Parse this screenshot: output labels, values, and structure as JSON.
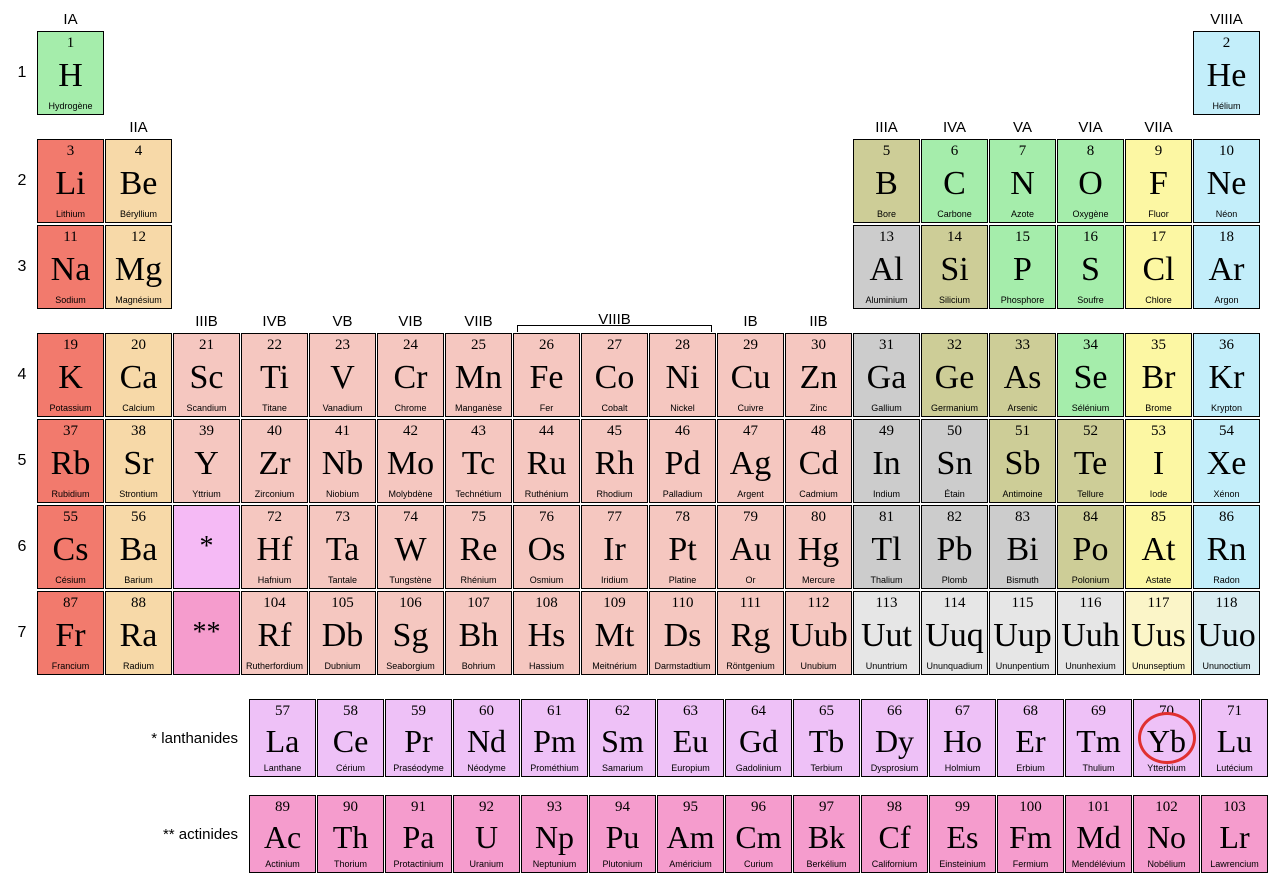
{
  "colors": {
    "nonmetal_green": "#a5edab",
    "noble_gas": "#c3eefa",
    "alkali": "#f27a6d",
    "alkaline_earth": "#f7d9a8",
    "transition": "#f5c7c0",
    "post_transition": "#cccccc",
    "metalloid": "#cdcd97",
    "halogen": "#fcf7a3",
    "lanthanide_marker": "#f5baf5",
    "lanthanide": "#eec1f7",
    "actinide_marker": "#f59ccd",
    "actinide": "#f59ccd",
    "unknown_yellow": "#fbf5c8",
    "unknown_gray": "#e6e6e6",
    "unknown_blue": "#d9edf2",
    "pale_metalloid": "#e0e0c4"
  },
  "highlight": {
    "element": 70,
    "color": "#e03030"
  },
  "group_labels": {
    "1": "IA",
    "2": "IIA",
    "3": "IIIB",
    "4": "IVB",
    "5": "VB",
    "6": "VIB",
    "7": "VIIB",
    "8": "VIIIB",
    "11": "IB",
    "12": "IIB",
    "13": "IIIA",
    "14": "IVA",
    "15": "VA",
    "16": "VIA",
    "17": "VIIA",
    "18": "VIIIA"
  },
  "group_label_row": {
    "1": 1,
    "2": 2,
    "3": 4,
    "4": 4,
    "5": 4,
    "6": 4,
    "7": 4,
    "8": 4,
    "11": 4,
    "12": 4,
    "13": 2,
    "14": 2,
    "15": 2,
    "16": 2,
    "17": 2,
    "18": 1
  },
  "periods": [
    1,
    2,
    3,
    4,
    5,
    6,
    7
  ],
  "series": [
    {
      "label": "* lanthanides",
      "from": 57,
      "to": 71,
      "cat": "lanthanide"
    },
    {
      "label": "** actinides",
      "from": 89,
      "to": 103,
      "cat": "actinide"
    }
  ],
  "markers": [
    {
      "period": 6,
      "group": 3,
      "text": "*",
      "cat": "lanthanide_marker"
    },
    {
      "period": 7,
      "group": 3,
      "text": "**",
      "cat": "actinide_marker"
    }
  ],
  "elements": [
    {
      "n": 1,
      "s": "H",
      "name": "Hydrogène",
      "p": 1,
      "g": 1,
      "cat": "nonmetal_green"
    },
    {
      "n": 2,
      "s": "He",
      "name": "Hélium",
      "p": 1,
      "g": 18,
      "cat": "noble_gas"
    },
    {
      "n": 3,
      "s": "Li",
      "name": "Lithium",
      "p": 2,
      "g": 1,
      "cat": "alkali"
    },
    {
      "n": 4,
      "s": "Be",
      "name": "Béryllium",
      "p": 2,
      "g": 2,
      "cat": "alkaline_earth"
    },
    {
      "n": 5,
      "s": "B",
      "name": "Bore",
      "p": 2,
      "g": 13,
      "cat": "metalloid"
    },
    {
      "n": 6,
      "s": "C",
      "name": "Carbone",
      "p": 2,
      "g": 14,
      "cat": "nonmetal_green"
    },
    {
      "n": 7,
      "s": "N",
      "name": "Azote",
      "p": 2,
      "g": 15,
      "cat": "nonmetal_green"
    },
    {
      "n": 8,
      "s": "O",
      "name": "Oxygène",
      "p": 2,
      "g": 16,
      "cat": "nonmetal_green"
    },
    {
      "n": 9,
      "s": "F",
      "name": "Fluor",
      "p": 2,
      "g": 17,
      "cat": "halogen"
    },
    {
      "n": 10,
      "s": "Ne",
      "name": "Néon",
      "p": 2,
      "g": 18,
      "cat": "noble_gas"
    },
    {
      "n": 11,
      "s": "Na",
      "name": "Sodium",
      "p": 3,
      "g": 1,
      "cat": "alkali"
    },
    {
      "n": 12,
      "s": "Mg",
      "name": "Magnésium",
      "p": 3,
      "g": 2,
      "cat": "alkaline_earth"
    },
    {
      "n": 13,
      "s": "Al",
      "name": "Aluminium",
      "p": 3,
      "g": 13,
      "cat": "post_transition"
    },
    {
      "n": 14,
      "s": "Si",
      "name": "Silicium",
      "p": 3,
      "g": 14,
      "cat": "metalloid"
    },
    {
      "n": 15,
      "s": "P",
      "name": "Phosphore",
      "p": 3,
      "g": 15,
      "cat": "nonmetal_green"
    },
    {
      "n": 16,
      "s": "S",
      "name": "Soufre",
      "p": 3,
      "g": 16,
      "cat": "nonmetal_green"
    },
    {
      "n": 17,
      "s": "Cl",
      "name": "Chlore",
      "p": 3,
      "g": 17,
      "cat": "halogen"
    },
    {
      "n": 18,
      "s": "Ar",
      "name": "Argon",
      "p": 3,
      "g": 18,
      "cat": "noble_gas"
    },
    {
      "n": 19,
      "s": "K",
      "name": "Potassium",
      "p": 4,
      "g": 1,
      "cat": "alkali"
    },
    {
      "n": 20,
      "s": "Ca",
      "name": "Calcium",
      "p": 4,
      "g": 2,
      "cat": "alkaline_earth"
    },
    {
      "n": 21,
      "s": "Sc",
      "name": "Scandium",
      "p": 4,
      "g": 3,
      "cat": "transition"
    },
    {
      "n": 22,
      "s": "Ti",
      "name": "Titane",
      "p": 4,
      "g": 4,
      "cat": "transition"
    },
    {
      "n": 23,
      "s": "V",
      "name": "Vanadium",
      "p": 4,
      "g": 5,
      "cat": "transition"
    },
    {
      "n": 24,
      "s": "Cr",
      "name": "Chrome",
      "p": 4,
      "g": 6,
      "cat": "transition"
    },
    {
      "n": 25,
      "s": "Mn",
      "name": "Manganèse",
      "p": 4,
      "g": 7,
      "cat": "transition"
    },
    {
      "n": 26,
      "s": "Fe",
      "name": "Fer",
      "p": 4,
      "g": 8,
      "cat": "transition"
    },
    {
      "n": 27,
      "s": "Co",
      "name": "Cobalt",
      "p": 4,
      "g": 9,
      "cat": "transition"
    },
    {
      "n": 28,
      "s": "Ni",
      "name": "Nickel",
      "p": 4,
      "g": 10,
      "cat": "transition"
    },
    {
      "n": 29,
      "s": "Cu",
      "name": "Cuivre",
      "p": 4,
      "g": 11,
      "cat": "transition"
    },
    {
      "n": 30,
      "s": "Zn",
      "name": "Zinc",
      "p": 4,
      "g": 12,
      "cat": "transition"
    },
    {
      "n": 31,
      "s": "Ga",
      "name": "Gallium",
      "p": 4,
      "g": 13,
      "cat": "post_transition"
    },
    {
      "n": 32,
      "s": "Ge",
      "name": "Germanium",
      "p": 4,
      "g": 14,
      "cat": "metalloid"
    },
    {
      "n": 33,
      "s": "As",
      "name": "Arsenic",
      "p": 4,
      "g": 15,
      "cat": "metalloid"
    },
    {
      "n": 34,
      "s": "Se",
      "name": "Sélénium",
      "p": 4,
      "g": 16,
      "cat": "nonmetal_green"
    },
    {
      "n": 35,
      "s": "Br",
      "name": "Brome",
      "p": 4,
      "g": 17,
      "cat": "halogen"
    },
    {
      "n": 36,
      "s": "Kr",
      "name": "Krypton",
      "p": 4,
      "g": 18,
      "cat": "noble_gas"
    },
    {
      "n": 37,
      "s": "Rb",
      "name": "Rubidium",
      "p": 5,
      "g": 1,
      "cat": "alkali"
    },
    {
      "n": 38,
      "s": "Sr",
      "name": "Strontium",
      "p": 5,
      "g": 2,
      "cat": "alkaline_earth"
    },
    {
      "n": 39,
      "s": "Y",
      "name": "Yttrium",
      "p": 5,
      "g": 3,
      "cat": "transition"
    },
    {
      "n": 40,
      "s": "Zr",
      "name": "Zirconium",
      "p": 5,
      "g": 4,
      "cat": "transition"
    },
    {
      "n": 41,
      "s": "Nb",
      "name": "Niobium",
      "p": 5,
      "g": 5,
      "cat": "transition"
    },
    {
      "n": 42,
      "s": "Mo",
      "name": "Molybdène",
      "p": 5,
      "g": 6,
      "cat": "transition"
    },
    {
      "n": 43,
      "s": "Tc",
      "name": "Technétium",
      "p": 5,
      "g": 7,
      "cat": "transition"
    },
    {
      "n": 44,
      "s": "Ru",
      "name": "Ruthénium",
      "p": 5,
      "g": 8,
      "cat": "transition"
    },
    {
      "n": 45,
      "s": "Rh",
      "name": "Rhodium",
      "p": 5,
      "g": 9,
      "cat": "transition"
    },
    {
      "n": 46,
      "s": "Pd",
      "name": "Palladium",
      "p": 5,
      "g": 10,
      "cat": "transition"
    },
    {
      "n": 47,
      "s": "Ag",
      "name": "Argent",
      "p": 5,
      "g": 11,
      "cat": "transition"
    },
    {
      "n": 48,
      "s": "Cd",
      "name": "Cadmium",
      "p": 5,
      "g": 12,
      "cat": "transition"
    },
    {
      "n": 49,
      "s": "In",
      "name": "Indium",
      "p": 5,
      "g": 13,
      "cat": "post_transition"
    },
    {
      "n": 50,
      "s": "Sn",
      "name": "Étain",
      "p": 5,
      "g": 14,
      "cat": "post_transition"
    },
    {
      "n": 51,
      "s": "Sb",
      "name": "Antimoine",
      "p": 5,
      "g": 15,
      "cat": "metalloid"
    },
    {
      "n": 52,
      "s": "Te",
      "name": "Tellure",
      "p": 5,
      "g": 16,
      "cat": "metalloid"
    },
    {
      "n": 53,
      "s": "I",
      "name": "Iode",
      "p": 5,
      "g": 17,
      "cat": "halogen"
    },
    {
      "n": 54,
      "s": "Xe",
      "name": "Xénon",
      "p": 5,
      "g": 18,
      "cat": "noble_gas"
    },
    {
      "n": 55,
      "s": "Cs",
      "name": "Césium",
      "p": 6,
      "g": 1,
      "cat": "alkali"
    },
    {
      "n": 56,
      "s": "Ba",
      "name": "Barium",
      "p": 6,
      "g": 2,
      "cat": "alkaline_earth"
    },
    {
      "n": 72,
      "s": "Hf",
      "name": "Hafnium",
      "p": 6,
      "g": 4,
      "cat": "transition"
    },
    {
      "n": 73,
      "s": "Ta",
      "name": "Tantale",
      "p": 6,
      "g": 5,
      "cat": "transition"
    },
    {
      "n": 74,
      "s": "W",
      "name": "Tungstène",
      "p": 6,
      "g": 6,
      "cat": "transition"
    },
    {
      "n": 75,
      "s": "Re",
      "name": "Rhénium",
      "p": 6,
      "g": 7,
      "cat": "transition"
    },
    {
      "n": 76,
      "s": "Os",
      "name": "Osmium",
      "p": 6,
      "g": 8,
      "cat": "transition"
    },
    {
      "n": 77,
      "s": "Ir",
      "name": "Iridium",
      "p": 6,
      "g": 9,
      "cat": "transition"
    },
    {
      "n": 78,
      "s": "Pt",
      "name": "Platine",
      "p": 6,
      "g": 10,
      "cat": "transition"
    },
    {
      "n": 79,
      "s": "Au",
      "name": "Or",
      "p": 6,
      "g": 11,
      "cat": "transition"
    },
    {
      "n": 80,
      "s": "Hg",
      "name": "Mercure",
      "p": 6,
      "g": 12,
      "cat": "transition"
    },
    {
      "n": 81,
      "s": "Tl",
      "name": "Thalium",
      "p": 6,
      "g": 13,
      "cat": "post_transition"
    },
    {
      "n": 82,
      "s": "Pb",
      "name": "Plomb",
      "p": 6,
      "g": 14,
      "cat": "post_transition"
    },
    {
      "n": 83,
      "s": "Bi",
      "name": "Bismuth",
      "p": 6,
      "g": 15,
      "cat": "post_transition"
    },
    {
      "n": 84,
      "s": "Po",
      "name": "Polonium",
      "p": 6,
      "g": 16,
      "cat": "metalloid"
    },
    {
      "n": 85,
      "s": "At",
      "name": "Astate",
      "p": 6,
      "g": 17,
      "cat": "halogen"
    },
    {
      "n": 86,
      "s": "Rn",
      "name": "Radon",
      "p": 6,
      "g": 18,
      "cat": "noble_gas"
    },
    {
      "n": 87,
      "s": "Fr",
      "name": "Francium",
      "p": 7,
      "g": 1,
      "cat": "alkali"
    },
    {
      "n": 88,
      "s": "Ra",
      "name": "Radium",
      "p": 7,
      "g": 2,
      "cat": "alkaline_earth"
    },
    {
      "n": 104,
      "s": "Rf",
      "name": "Rutherfordium",
      "p": 7,
      "g": 4,
      "cat": "transition"
    },
    {
      "n": 105,
      "s": "Db",
      "name": "Dubnium",
      "p": 7,
      "g": 5,
      "cat": "transition"
    },
    {
      "n": 106,
      "s": "Sg",
      "name": "Seaborgium",
      "p": 7,
      "g": 6,
      "cat": "transition"
    },
    {
      "n": 107,
      "s": "Bh",
      "name": "Bohrium",
      "p": 7,
      "g": 7,
      "cat": "transition"
    },
    {
      "n": 108,
      "s": "Hs",
      "name": "Hassium",
      "p": 7,
      "g": 8,
      "cat": "transition"
    },
    {
      "n": 109,
      "s": "Mt",
      "name": "Meitnérium",
      "p": 7,
      "g": 9,
      "cat": "transition"
    },
    {
      "n": 110,
      "s": "Ds",
      "name": "Darmstadtium",
      "p": 7,
      "g": 10,
      "cat": "transition"
    },
    {
      "n": 111,
      "s": "Rg",
      "name": "Röntgenium",
      "p": 7,
      "g": 11,
      "cat": "transition"
    },
    {
      "n": 112,
      "s": "Uub",
      "name": "Unubium",
      "p": 7,
      "g": 12,
      "cat": "transition"
    },
    {
      "n": 113,
      "s": "Uut",
      "name": "Ununtrium",
      "p": 7,
      "g": 13,
      "cat": "unknown_gray"
    },
    {
      "n": 114,
      "s": "Uuq",
      "name": "Ununquadium",
      "p": 7,
      "g": 14,
      "cat": "unknown_gray"
    },
    {
      "n": 115,
      "s": "Uup",
      "name": "Ununpentium",
      "p": 7,
      "g": 15,
      "cat": "unknown_gray"
    },
    {
      "n": 116,
      "s": "Uuh",
      "name": "Ununhexium",
      "p": 7,
      "g": 16,
      "cat": "unknown_gray"
    },
    {
      "n": 117,
      "s": "Uus",
      "name": "Ununseptium",
      "p": 7,
      "g": 17,
      "cat": "unknown_yellow"
    },
    {
      "n": 118,
      "s": "Uuo",
      "name": "Ununoctium",
      "p": 7,
      "g": 18,
      "cat": "unknown_blue"
    }
  ],
  "lanthanides": [
    {
      "n": 57,
      "s": "La",
      "name": "Lanthane"
    },
    {
      "n": 58,
      "s": "Ce",
      "name": "Cérium"
    },
    {
      "n": 59,
      "s": "Pr",
      "name": "Praséodyme"
    },
    {
      "n": 60,
      "s": "Nd",
      "name": "Néodyme"
    },
    {
      "n": 61,
      "s": "Pm",
      "name": "Prométhium"
    },
    {
      "n": 62,
      "s": "Sm",
      "name": "Samarium"
    },
    {
      "n": 63,
      "s": "Eu",
      "name": "Europium"
    },
    {
      "n": 64,
      "s": "Gd",
      "name": "Gadolinium"
    },
    {
      "n": 65,
      "s": "Tb",
      "name": "Terbium"
    },
    {
      "n": 66,
      "s": "Dy",
      "name": "Dysprosium"
    },
    {
      "n": 67,
      "s": "Ho",
      "name": "Holmium"
    },
    {
      "n": 68,
      "s": "Er",
      "name": "Erbium"
    },
    {
      "n": 69,
      "s": "Tm",
      "name": "Thulium"
    },
    {
      "n": 70,
      "s": "Yb",
      "name": "Ytterbium"
    },
    {
      "n": 71,
      "s": "Lu",
      "name": "Lutécium"
    }
  ],
  "actinides": [
    {
      "n": 89,
      "s": "Ac",
      "name": "Actinium"
    },
    {
      "n": 90,
      "s": "Th",
      "name": "Thorium"
    },
    {
      "n": 91,
      "s": "Pa",
      "name": "Protactinium"
    },
    {
      "n": 92,
      "s": "U",
      "name": "Uranium"
    },
    {
      "n": 93,
      "s": "Np",
      "name": "Neptunium"
    },
    {
      "n": 94,
      "s": "Pu",
      "name": "Plutonium"
    },
    {
      "n": 95,
      "s": "Am",
      "name": "Américium"
    },
    {
      "n": 96,
      "s": "Cm",
      "name": "Curium"
    },
    {
      "n": 97,
      "s": "Bk",
      "name": "Berkélium"
    },
    {
      "n": 98,
      "s": "Cf",
      "name": "Californium"
    },
    {
      "n": 99,
      "s": "Es",
      "name": "Einsteinium"
    },
    {
      "n": 100,
      "s": "Fm",
      "name": "Fermium"
    },
    {
      "n": 101,
      "s": "Md",
      "name": "Mendélévium"
    },
    {
      "n": 102,
      "s": "No",
      "name": "Nobélium"
    },
    {
      "n": 103,
      "s": "Lr",
      "name": "Lawrencium"
    }
  ]
}
